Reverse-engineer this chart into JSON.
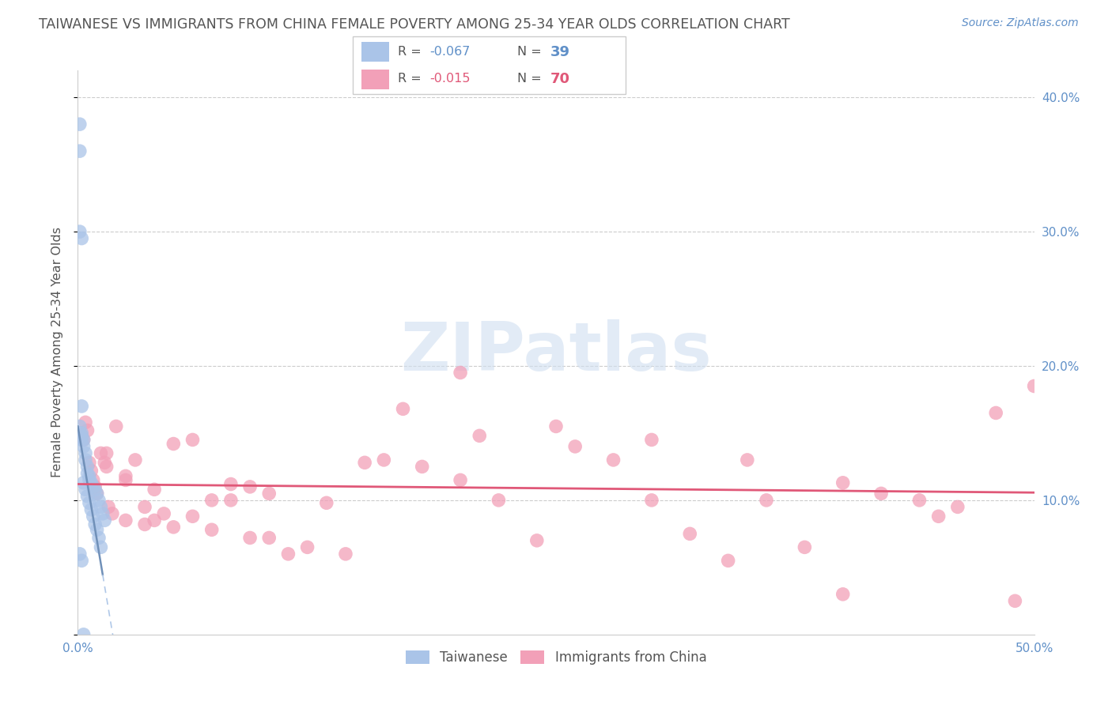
{
  "title": "TAIWANESE VS IMMIGRANTS FROM CHINA FEMALE POVERTY AMONG 25-34 YEAR OLDS CORRELATION CHART",
  "source": "Source: ZipAtlas.com",
  "ylabel": "Female Poverty Among 25-34 Year Olds",
  "xlim": [
    0.0,
    0.5
  ],
  "ylim": [
    0.0,
    0.42
  ],
  "watermark_text": "ZIPatlas",
  "legend_r1": "-0.067",
  "legend_n1": "39",
  "legend_r2": "-0.015",
  "legend_n2": "70",
  "legend_label1": "Taiwanese",
  "legend_label2": "Immigrants from China",
  "color_taiwanese": "#aac4e8",
  "color_immigrants": "#f2a0b8",
  "trendline_blue_solid": "#7090b8",
  "trendline_blue_dashed": "#b0c8e8",
  "trendline_pink": "#e05878",
  "background_color": "#ffffff",
  "gridline_color": "#cccccc",
  "title_color": "#555555",
  "axis_label_color": "#6090c8",
  "ylabel_color": "#555555",
  "watermark_color": "#d0dff0",
  "tw_x": [
    0.001,
    0.001,
    0.001,
    0.002,
    0.002,
    0.002,
    0.003,
    0.003,
    0.004,
    0.004,
    0.005,
    0.005,
    0.006,
    0.006,
    0.007,
    0.008,
    0.009,
    0.01,
    0.011,
    0.012,
    0.013,
    0.014,
    0.001,
    0.001,
    0.002,
    0.002,
    0.003,
    0.004,
    0.005,
    0.006,
    0.007,
    0.008,
    0.009,
    0.01,
    0.011,
    0.012,
    0.001,
    0.002,
    0.003
  ],
  "tw_y": [
    0.38,
    0.36,
    0.3,
    0.295,
    0.17,
    0.15,
    0.145,
    0.14,
    0.135,
    0.13,
    0.125,
    0.12,
    0.118,
    0.115,
    0.113,
    0.11,
    0.108,
    0.105,
    0.1,
    0.095,
    0.09,
    0.085,
    0.155,
    0.15,
    0.148,
    0.145,
    0.113,
    0.108,
    0.103,
    0.098,
    0.093,
    0.088,
    0.082,
    0.078,
    0.072,
    0.065,
    0.06,
    0.055,
    0.0
  ],
  "im_x": [
    0.001,
    0.002,
    0.003,
    0.004,
    0.005,
    0.006,
    0.007,
    0.008,
    0.009,
    0.01,
    0.012,
    0.014,
    0.016,
    0.018,
    0.02,
    0.025,
    0.03,
    0.035,
    0.04,
    0.045,
    0.05,
    0.06,
    0.07,
    0.08,
    0.09,
    0.1,
    0.12,
    0.14,
    0.16,
    0.18,
    0.2,
    0.22,
    0.24,
    0.26,
    0.28,
    0.3,
    0.32,
    0.34,
    0.36,
    0.38,
    0.4,
    0.42,
    0.44,
    0.46,
    0.48,
    0.5,
    0.015,
    0.025,
    0.035,
    0.05,
    0.07,
    0.09,
    0.11,
    0.15,
    0.2,
    0.25,
    0.3,
    0.35,
    0.4,
    0.45,
    0.49,
    0.015,
    0.025,
    0.04,
    0.06,
    0.08,
    0.1,
    0.13,
    0.17,
    0.21
  ],
  "im_y": [
    0.15,
    0.148,
    0.145,
    0.158,
    0.152,
    0.128,
    0.122,
    0.115,
    0.11,
    0.105,
    0.135,
    0.128,
    0.095,
    0.09,
    0.155,
    0.115,
    0.13,
    0.095,
    0.085,
    0.09,
    0.08,
    0.145,
    0.1,
    0.1,
    0.11,
    0.105,
    0.065,
    0.06,
    0.13,
    0.125,
    0.115,
    0.1,
    0.07,
    0.14,
    0.13,
    0.145,
    0.075,
    0.055,
    0.1,
    0.065,
    0.03,
    0.105,
    0.1,
    0.095,
    0.165,
    0.185,
    0.135,
    0.118,
    0.082,
    0.142,
    0.078,
    0.072,
    0.06,
    0.128,
    0.195,
    0.155,
    0.1,
    0.13,
    0.113,
    0.088,
    0.025,
    0.125,
    0.085,
    0.108,
    0.088,
    0.112,
    0.072,
    0.098,
    0.168,
    0.148
  ]
}
